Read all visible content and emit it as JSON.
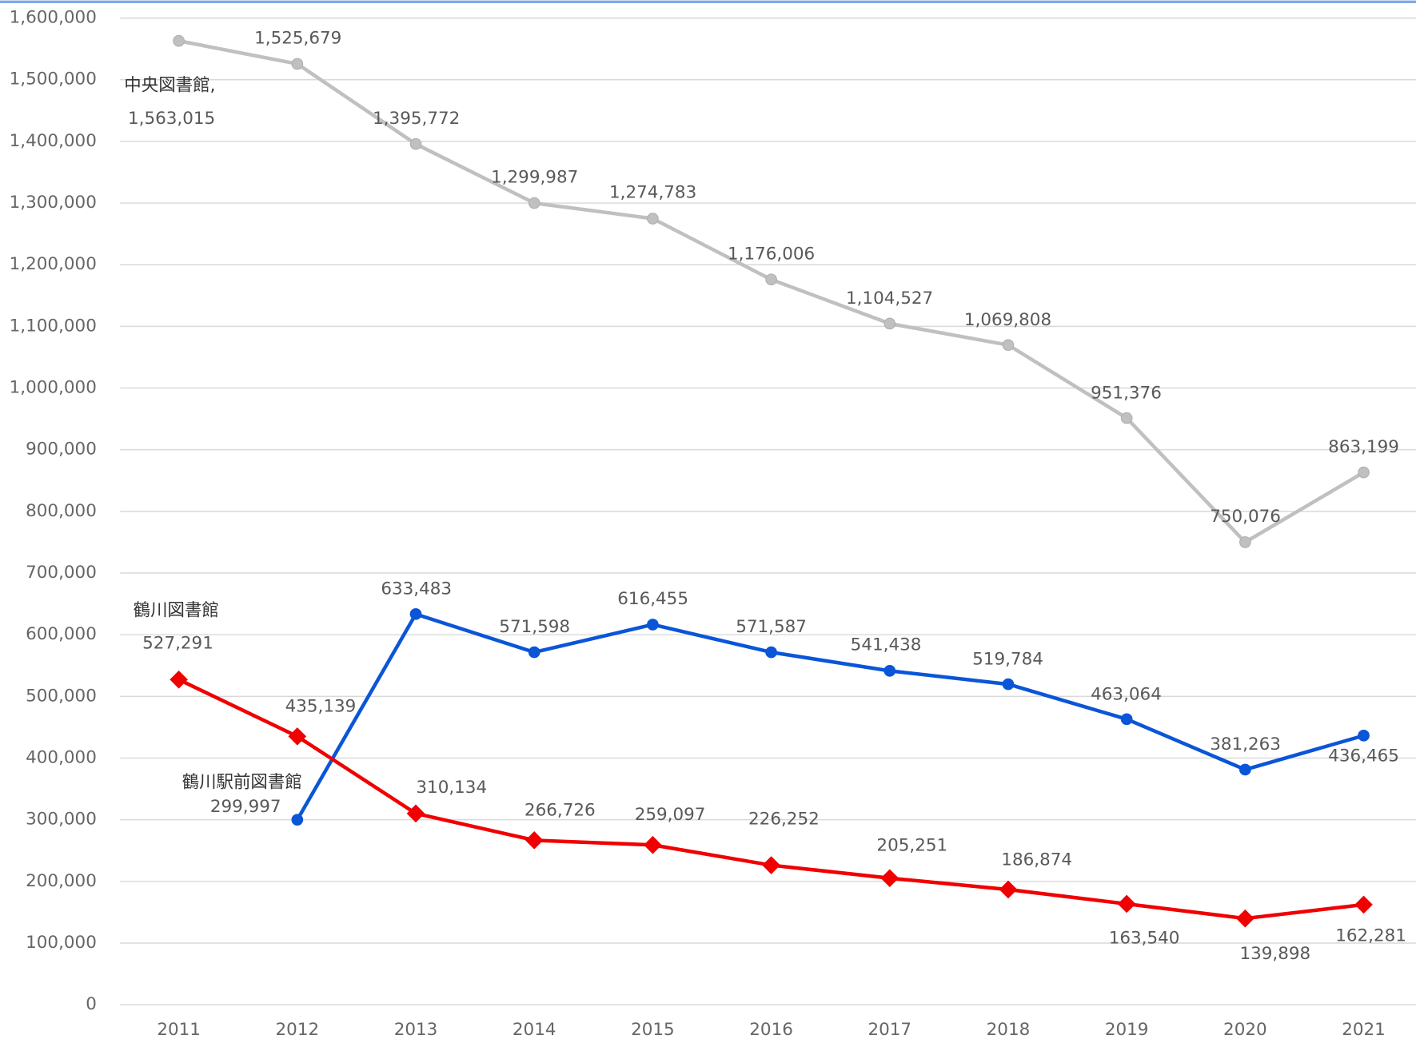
{
  "chart_data": {
    "type": "line",
    "x": [
      2011,
      2012,
      2013,
      2014,
      2015,
      2016,
      2017,
      2018,
      2019,
      2020,
      2021
    ],
    "xticks": [
      2011,
      2012,
      2013,
      2014,
      2015,
      2016,
      2017,
      2018,
      2019,
      2020,
      2021
    ],
    "xlim": [
      2010,
      2022
    ],
    "ylim": [
      0,
      1600000
    ],
    "yticks": [
      0,
      {
        "value": 100000,
        "label": "100,000"
      },
      {
        "value": 200000,
        "label": "200,000"
      },
      {
        "value": 300000,
        "label": "300,000"
      },
      {
        "value": 400000,
        "label": "400,000"
      },
      {
        "value": 500000,
        "label": "500,000"
      },
      {
        "value": 600000,
        "label": "600,000"
      },
      {
        "value": 700000,
        "label": "700,000"
      },
      {
        "value": 800000,
        "label": "800,000"
      },
      {
        "value": 900000,
        "label": "900,000"
      },
      {
        "value": 1000000,
        "label": "1,000,000"
      },
      {
        "value": 1100000,
        "label": "1,100,000"
      },
      {
        "value": 1200000,
        "label": "1,200,000"
      },
      {
        "value": 1300000,
        "label": "1,300,000"
      },
      {
        "value": 1400000,
        "label": "1,400,000"
      },
      {
        "value": 1500000,
        "label": "1,500,000"
      },
      {
        "value": 1600000,
        "label": "1,600,000"
      }
    ],
    "grid": true,
    "series": [
      {
        "name": "中央図書館,",
        "color": "#c0c0c0",
        "marker": "circle",
        "values": [
          1563015,
          1525679,
          1395772,
          1299987,
          1274783,
          1176006,
          1104527,
          1069808,
          951376,
          750076,
          863199
        ],
        "value_labels": [
          "1,563,015",
          "1,525,679",
          "1,395,772",
          "1,299,987",
          "1,274,783",
          "1,176,006",
          "1,104,527",
          "1,069,808",
          "951,376",
          "750,076",
          "863,199"
        ]
      },
      {
        "name": "鶴川駅前図書館",
        "color": "#0a55d8",
        "marker": "circle",
        "values": [
          null,
          299997,
          633483,
          571598,
          616455,
          571587,
          541438,
          519784,
          463064,
          381263,
          436465
        ],
        "value_labels": [
          null,
          "299,997",
          "633,483",
          "571,598",
          "616,455",
          "571,587",
          "541,438",
          "519,784",
          "463,064",
          "381,263",
          "436,465"
        ]
      },
      {
        "name": "鶴川図書館",
        "color": "#f00000",
        "marker": "diamond",
        "values": [
          527291,
          435139,
          310134,
          266726,
          259097,
          226252,
          205251,
          186874,
          163540,
          139898,
          162281
        ],
        "value_labels": [
          "527,291",
          "435,139",
          "310,134",
          "266,726",
          "259,097",
          "226,252",
          "205,251",
          "186,874",
          "163,540",
          "139,898",
          "162,281"
        ]
      }
    ]
  }
}
